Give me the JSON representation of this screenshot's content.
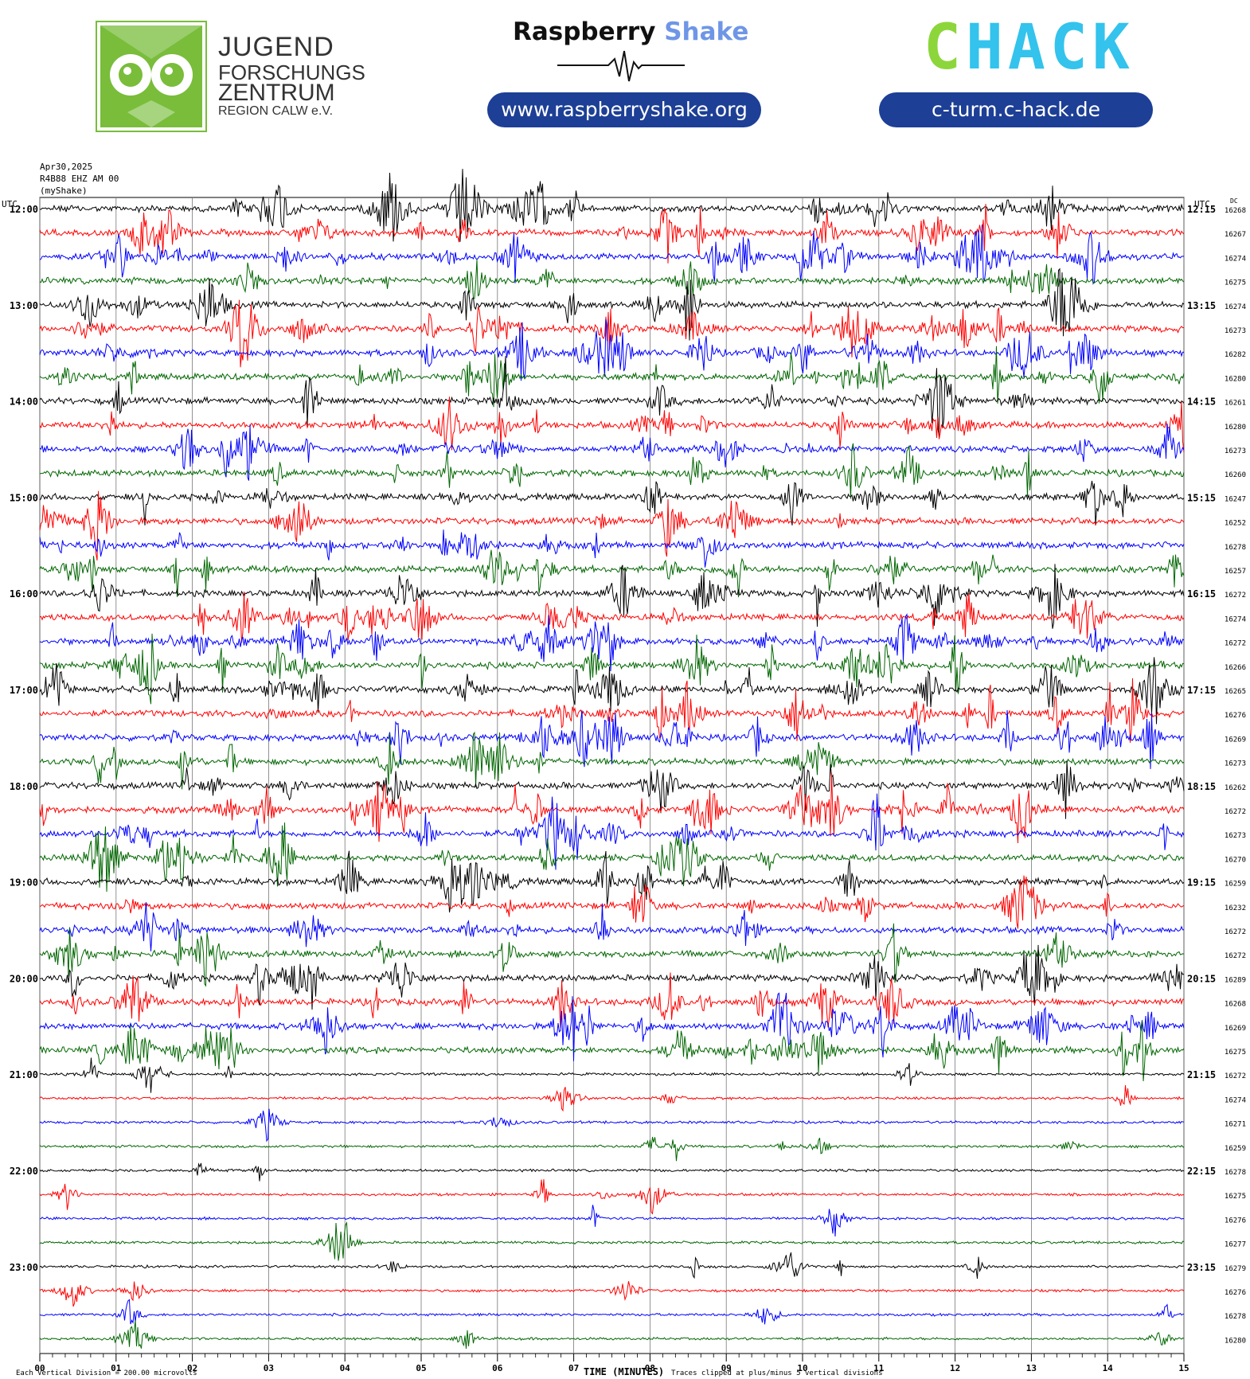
{
  "header": {
    "jfz": {
      "line1": "JUGEND",
      "line2": "FORSCHUNGS",
      "line3": "ZENTRUM",
      "line4": "REGION CALW e.V."
    },
    "rs": {
      "word1": "Raspberry",
      "word2": "Shake",
      "url": "www.raspberryshake.org"
    },
    "chack": {
      "logo": "CHACK",
      "url": "c-turm.c-hack.de"
    },
    "colors": {
      "green": "#79bd3b",
      "pill": "#1d3f95",
      "shake": "#6f96e6",
      "chack_green": "#8cd63b",
      "chack_blue": "#33c3ec"
    }
  },
  "meta": {
    "date": "Apr30,2025",
    "station": "R4B88 EHZ AM 00",
    "source": "(myShake)",
    "utc_left": "UTC",
    "utc_right": "UTC",
    "dc": "DC"
  },
  "chart_data": {
    "type": "helicorder",
    "xlabel": "TIME (MINUTES)",
    "x_ticks": [
      "00",
      "01",
      "02",
      "03",
      "04",
      "05",
      "06",
      "07",
      "08",
      "09",
      "10",
      "11",
      "12",
      "13",
      "14",
      "15"
    ],
    "xlim": [
      0,
      15
    ],
    "trace_colors": [
      "#000000",
      "#ff0000",
      "#0000ff",
      "#006600"
    ],
    "rows_left": [
      "12:00",
      "13:00",
      "14:00",
      "15:00",
      "16:00",
      "17:00",
      "18:00",
      "19:00",
      "20:00",
      "21:00",
      "22:00",
      "23:00"
    ],
    "rows_right": [
      "12:15",
      "13:15",
      "14:15",
      "15:15",
      "16:15",
      "17:15",
      "18:15",
      "19:15",
      "20:15",
      "21:15",
      "22:15",
      "23:15"
    ],
    "dc_values": [
      "16268",
      "16267",
      "16274",
      "16275",
      "16274",
      "16273",
      "16282",
      "16280",
      "16261",
      "16280",
      "16273",
      "16260",
      "16247",
      "16252",
      "16278",
      "16257",
      "16272",
      "16274",
      "16272",
      "16266",
      "16265",
      "16276",
      "16269",
      "16273",
      "16262",
      "16272",
      "16273",
      "16270",
      "16259",
      "16232",
      "16272",
      "16272",
      "16289",
      "16268",
      "16269",
      "16275",
      "16272",
      "16274",
      "16271",
      "16259",
      "16278",
      "16275",
      "16276",
      "16277",
      "16279",
      "16276",
      "16278",
      "16280"
    ],
    "footer_left": "Each Vertical Division = 200.00 microvolts",
    "footer_right": "Traces clipped at plus/minus 5 vertical divisions"
  }
}
